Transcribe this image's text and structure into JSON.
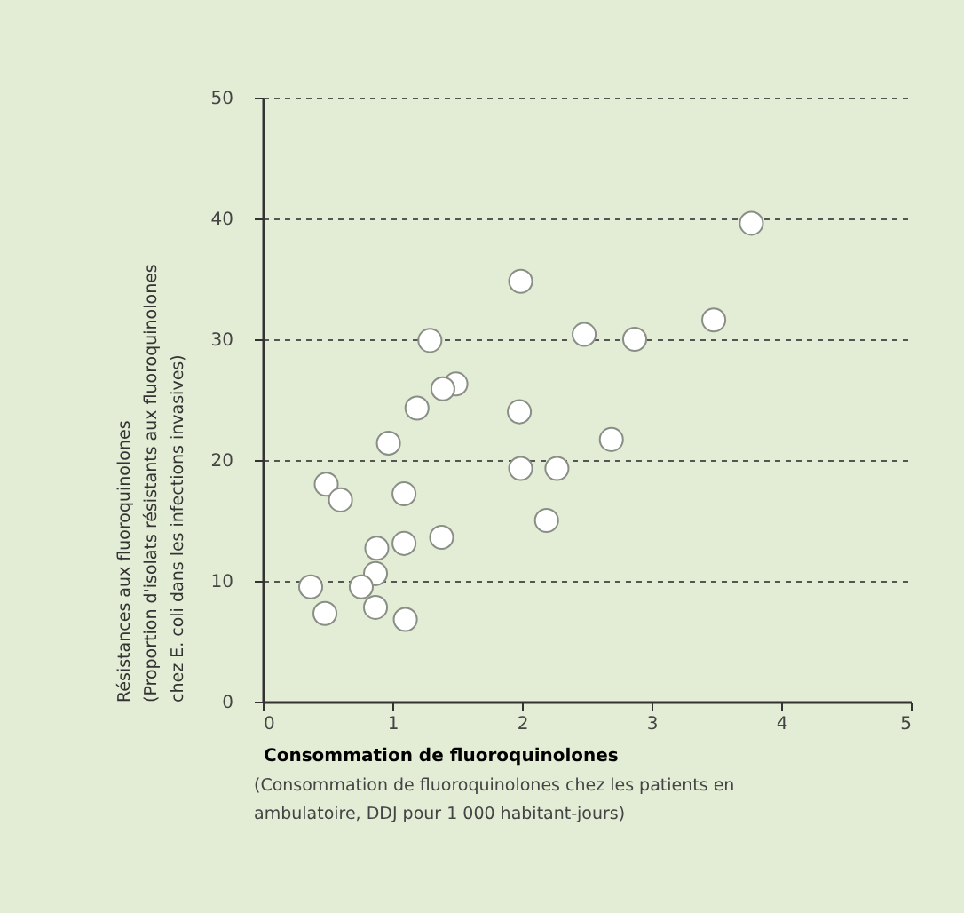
{
  "chart_data": {
    "type": "scatter",
    "xlabel": "Consommation de fluoroquinolones",
    "ylabel": "Résistances aux fluoroquinolones\n(Proportion d'isolats résistants aux fluoroquinolones\nchez E. coli dans les infections invasives)",
    "annotations": [
      "(Consommation de fluoroquinolones chez les patients en\nambulatoire, DDJ pour 1 000 habitant-jours)"
    ],
    "x": [
      3.77,
      1.99,
      3.48,
      2.48,
      2.87,
      1.29,
      1.49,
      1.39,
      1.19,
      1.98,
      2.69,
      0.97,
      1.99,
      2.27,
      0.49,
      0.6,
      1.09,
      2.19,
      1.38,
      1.09,
      0.88,
      0.87,
      0.37,
      0.76,
      0.87,
      0.48,
      1.1
    ],
    "values": [
      39.6,
      34.8,
      31.6,
      30.4,
      30.0,
      29.9,
      26.3,
      25.9,
      24.3,
      24.0,
      21.7,
      21.4,
      19.3,
      19.3,
      18.0,
      16.7,
      17.2,
      15.0,
      13.6,
      13.1,
      12.7,
      10.6,
      9.5,
      9.5,
      7.8,
      7.3,
      6.8
    ],
    "color": "#ffffff",
    "marker": "circle",
    "xlim": [
      0,
      5
    ],
    "xticks": [
      0,
      1,
      2,
      3,
      4,
      5
    ],
    "ylim": [
      0,
      50
    ],
    "yticks": [
      0,
      10,
      20,
      30,
      40,
      50
    ],
    "grid": "y"
  }
}
